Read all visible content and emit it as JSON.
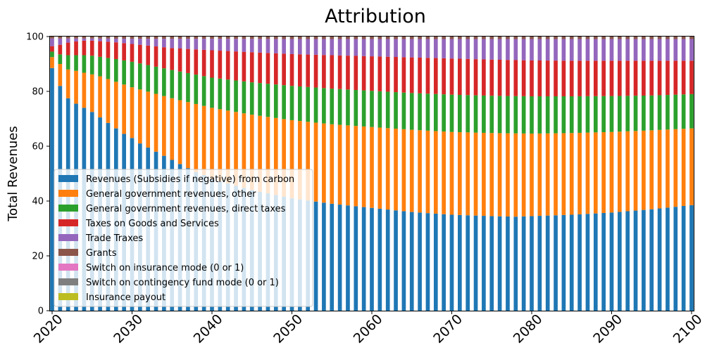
{
  "chart_data": {
    "type": "bar",
    "stacked": true,
    "title": "Attribution",
    "xlabel": "",
    "ylabel": "Total Revenues",
    "ylim": [
      0,
      100
    ],
    "yticks": [
      "0",
      "20",
      "40",
      "60",
      "80",
      "100"
    ],
    "xticks": [
      "2020",
      "2030",
      "2040",
      "2050",
      "2060",
      "2070",
      "2080",
      "2090",
      "2100"
    ],
    "x_start": 2020,
    "x_end": 2100,
    "legend_position": "lower-left",
    "grid": false,
    "series": [
      {
        "name": "Revenues (Subsidies if negative) from carbon",
        "color": "#1f77b4",
        "keyframes": [
          [
            2020,
            88.5
          ],
          [
            2021,
            82
          ],
          [
            2022,
            77.5
          ],
          [
            2023,
            75.5
          ],
          [
            2024,
            74
          ],
          [
            2025,
            72.5
          ],
          [
            2026,
            70.5
          ],
          [
            2027,
            68.5
          ],
          [
            2028,
            66.5
          ],
          [
            2029,
            64.5
          ],
          [
            2030,
            63
          ],
          [
            2031,
            61
          ],
          [
            2032,
            59.5
          ],
          [
            2033,
            58
          ],
          [
            2034,
            56.5
          ],
          [
            2035,
            55
          ],
          [
            2036,
            53.5
          ],
          [
            2037,
            52
          ],
          [
            2038,
            50.5
          ],
          [
            2039,
            49.5
          ],
          [
            2040,
            48
          ],
          [
            2045,
            44
          ],
          [
            2050,
            41
          ],
          [
            2055,
            39
          ],
          [
            2060,
            37.5
          ],
          [
            2065,
            36
          ],
          [
            2070,
            35
          ],
          [
            2075,
            34.5
          ],
          [
            2078,
            34.3
          ],
          [
            2080,
            34.5
          ],
          [
            2085,
            35
          ],
          [
            2090,
            35.8
          ],
          [
            2095,
            37
          ],
          [
            2100,
            38.5
          ]
        ]
      },
      {
        "name": "General government revenues, other",
        "color": "#ff7f0e",
        "keyframes": [
          [
            2020,
            92.5
          ],
          [
            2021,
            90
          ],
          [
            2022,
            88
          ],
          [
            2023,
            87.5
          ],
          [
            2024,
            86.8
          ],
          [
            2025,
            86.2
          ],
          [
            2026,
            85.5
          ],
          [
            2027,
            84.5
          ],
          [
            2028,
            83.5
          ],
          [
            2029,
            82.5
          ],
          [
            2030,
            81.5
          ],
          [
            2035,
            77.5
          ],
          [
            2040,
            74
          ],
          [
            2045,
            71.5
          ],
          [
            2050,
            69.5
          ],
          [
            2055,
            68
          ],
          [
            2060,
            67
          ],
          [
            2065,
            66
          ],
          [
            2070,
            65.2
          ],
          [
            2075,
            64.8
          ],
          [
            2080,
            64.6
          ],
          [
            2085,
            64.8
          ],
          [
            2090,
            65.2
          ],
          [
            2095,
            65.8
          ],
          [
            2100,
            66.5
          ]
        ]
      },
      {
        "name": "General government revenues, direct taxes",
        "color": "#2ca02c",
        "keyframes": [
          [
            2020,
            94.5
          ],
          [
            2021,
            93.5
          ],
          [
            2022,
            93.2
          ],
          [
            2023,
            93.2
          ],
          [
            2024,
            93.2
          ],
          [
            2025,
            93
          ],
          [
            2026,
            92.6
          ],
          [
            2027,
            92.2
          ],
          [
            2028,
            91.8
          ],
          [
            2029,
            91.3
          ],
          [
            2030,
            90.8
          ],
          [
            2035,
            87.8
          ],
          [
            2040,
            85
          ],
          [
            2045,
            83.3
          ],
          [
            2050,
            82
          ],
          [
            2055,
            81
          ],
          [
            2060,
            80.2
          ],
          [
            2065,
            79.4
          ],
          [
            2070,
            78.8
          ],
          [
            2075,
            78.4
          ],
          [
            2080,
            78.2
          ],
          [
            2085,
            78.2
          ],
          [
            2090,
            78.3
          ],
          [
            2095,
            78.5
          ],
          [
            2100,
            79
          ]
        ]
      },
      {
        "name": "Taxes on Goods and Services",
        "color": "#d62728",
        "keyframes": [
          [
            2020,
            96.5
          ],
          [
            2021,
            97
          ],
          [
            2022,
            97.8
          ],
          [
            2023,
            98.2
          ],
          [
            2024,
            98.5
          ],
          [
            2025,
            98.5
          ],
          [
            2026,
            98.3
          ],
          [
            2027,
            98.1
          ],
          [
            2028,
            97.9
          ],
          [
            2029,
            97.6
          ],
          [
            2030,
            97.3
          ],
          [
            2035,
            95.8
          ],
          [
            2040,
            95
          ],
          [
            2045,
            94.3
          ],
          [
            2050,
            93.6
          ],
          [
            2055,
            93.2
          ],
          [
            2060,
            92.8
          ],
          [
            2065,
            92.4
          ],
          [
            2070,
            92
          ],
          [
            2075,
            91.6
          ],
          [
            2080,
            91.3
          ],
          [
            2085,
            91.2
          ],
          [
            2090,
            91.2
          ],
          [
            2095,
            91.2
          ],
          [
            2100,
            91.2
          ]
        ]
      },
      {
        "name": "Trade Traxes",
        "color": "#9467bd",
        "keyframes": [
          [
            2020,
            99.3
          ],
          [
            2025,
            99.3
          ],
          [
            2030,
            99.2
          ],
          [
            2040,
            99.2
          ],
          [
            2050,
            99.1
          ],
          [
            2060,
            99.1
          ],
          [
            2070,
            99.1
          ],
          [
            2080,
            99.1
          ],
          [
            2090,
            99.1
          ],
          [
            2100,
            99.1
          ]
        ]
      },
      {
        "name": "Grants",
        "color": "#8c564b",
        "keyframes": [
          [
            2020,
            100
          ],
          [
            2100,
            100
          ]
        ]
      },
      {
        "name": "Switch on insurance mode (0 or 1)",
        "color": "#e377c2",
        "keyframes": [
          [
            2020,
            100
          ],
          [
            2100,
            100
          ]
        ]
      },
      {
        "name": "Switch on contingency fund mode (0 or 1)",
        "color": "#7f7f7f",
        "keyframes": [
          [
            2020,
            100
          ],
          [
            2100,
            100
          ]
        ]
      },
      {
        "name": "Insurance payout",
        "color": "#bcbd22",
        "keyframes": [
          [
            2020,
            100
          ],
          [
            2100,
            100
          ]
        ]
      }
    ]
  }
}
